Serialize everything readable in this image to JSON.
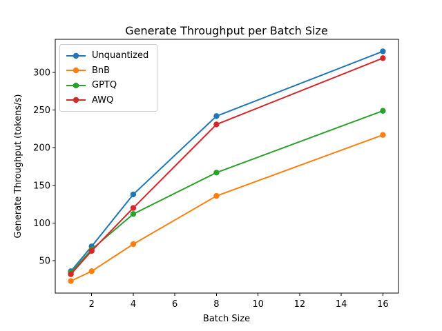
{
  "chart_data": {
    "type": "line",
    "title": "Generate Throughput per Batch Size",
    "xlabel": "Batch Size",
    "ylabel": "Generate Throughput (tokens/s)",
    "x": [
      1,
      2,
      4,
      8,
      16
    ],
    "series": [
      {
        "name": "Unquantized",
        "color": "#1f77b4",
        "values": [
          36,
          69,
          138,
          242,
          328
        ]
      },
      {
        "name": "BnB",
        "color": "#ff7f0e",
        "values": [
          23,
          36,
          72,
          136,
          217
        ]
      },
      {
        "name": "GPTQ",
        "color": "#2ca02c",
        "values": [
          34,
          65,
          112,
          167,
          249
        ]
      },
      {
        "name": "AWQ",
        "color": "#d62728",
        "values": [
          32,
          63,
          120,
          231,
          319
        ]
      }
    ],
    "x_ticks": [
      2,
      4,
      6,
      8,
      10,
      12,
      14,
      16
    ],
    "y_ticks": [
      50,
      100,
      150,
      200,
      250,
      300
    ],
    "xlim": [
      0.25,
      16.75
    ],
    "ylim": [
      7,
      344
    ],
    "grid": false,
    "legend_position": "upper left",
    "marker": "circle",
    "axis_color": "#000000"
  }
}
